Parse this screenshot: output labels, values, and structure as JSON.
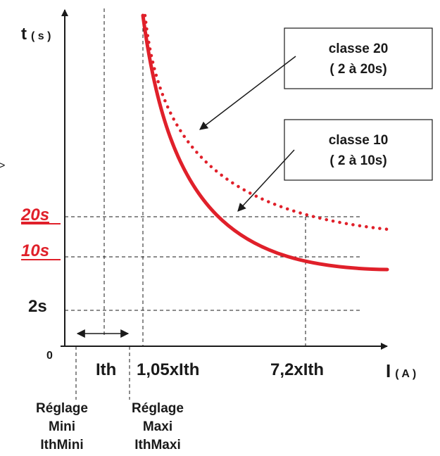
{
  "axes": {
    "y_label_main": "t",
    "y_label_unit": "( s )",
    "x_label_main": "I",
    "x_label_unit": "( A )",
    "origin": "0"
  },
  "y_ticks": {
    "t20": "20s",
    "t10": "10s",
    "t2": "2s"
  },
  "x_ticks": {
    "ith": "Ith",
    "ith105": "1,05xIth",
    "ith72": "7,2xIth"
  },
  "callouts": {
    "class20_line1": "classe 20",
    "class20_line2": "( 2 à 20s)",
    "class10_line1": "classe 10",
    "class10_line2": "( 2 à 10s)"
  },
  "settings": {
    "mini_line1": "Réglage",
    "mini_line2": "Mini",
    "mini_line3": "IthMini",
    "maxi_line1": "Réglage",
    "maxi_line2": "Maxi",
    "maxi_line3": "IthMaxi"
  },
  "edge_mark": ">",
  "colors": {
    "curve": "#e0202a",
    "axis": "#1a1a1a"
  }
}
